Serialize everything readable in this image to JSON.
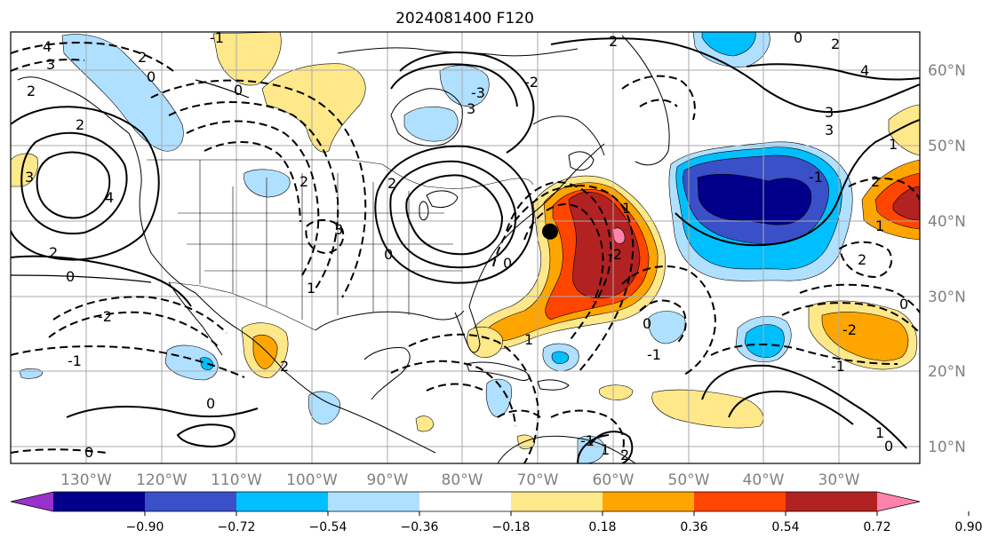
{
  "title": "2024081400 F120",
  "map": {
    "lon_range": [
      -137,
      -16
    ],
    "lat_range": [
      7.5,
      65
    ],
    "lat_labels": [
      "10°N",
      "20°N",
      "30°N",
      "40°N",
      "50°N",
      "60°N"
    ],
    "lon_labels": [
      "130°W",
      "120°W",
      "110°W",
      "100°W",
      "90°W",
      "80°W",
      "70°W",
      "60°W",
      "50°W",
      "40°W",
      "30°W"
    ],
    "marker": {
      "lon": -65.2,
      "lat": 38.4,
      "color": "#000000"
    }
  },
  "colorbar": {
    "levels": [
      "−0.90",
      "−0.72",
      "−0.54",
      "−0.36",
      "−0.18",
      "0.18",
      "0.36",
      "0.54",
      "0.72",
      "0.90"
    ],
    "colors": [
      "#9932cc",
      "#00008b",
      "#3a50c8",
      "#00bfff",
      "#b0e0ff",
      "#ffffff",
      "#ffe88a",
      "#ffa500",
      "#ff4500",
      "#b22222",
      "#ff82ab"
    ]
  },
  "contour_labels": [
    "4",
    "3",
    "2",
    "2",
    "0",
    "2",
    "-1",
    "0",
    "3",
    "2",
    "0",
    "4",
    "3",
    "2",
    "0",
    "-2",
    "1",
    "-1",
    "0",
    "2",
    "3",
    "-3",
    "-2",
    "0",
    "-2",
    "1",
    "2",
    "-1",
    "2",
    "3",
    "0",
    "1",
    "4",
    "3",
    "2",
    "1",
    "-1",
    "0",
    "-2",
    "2",
    "1",
    "0",
    "0",
    "-1",
    "1",
    "2",
    "1",
    "-1",
    "2",
    "0"
  ]
}
